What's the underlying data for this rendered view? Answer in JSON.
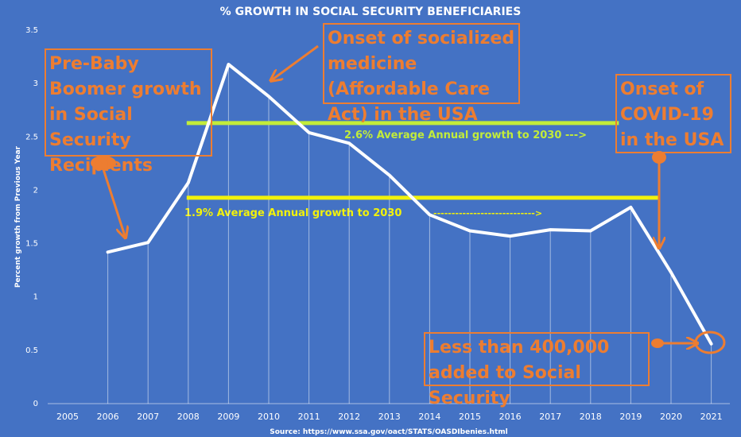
{
  "chart_data": {
    "type": "line",
    "title": "% GROWTH IN SOCIAL SECURITY BENEFICIARIES",
    "ylabel": "Percent growth from Previous Year",
    "xlabel": "",
    "source": "Source: https://www.ssa.gov/oact/STATS/OASDIbenies.html",
    "categories": [
      "2005",
      "2006",
      "2007",
      "2008",
      "2009",
      "2010",
      "2011",
      "2012",
      "2013",
      "2014",
      "2015",
      "2016",
      "2017",
      "2018",
      "2019",
      "2020",
      "2021"
    ],
    "ylim": [
      0,
      3.5
    ],
    "yticks": [
      "0",
      "0.5",
      "1",
      "1.5",
      "2",
      "2.5",
      "3",
      "3.5"
    ],
    "series": [
      {
        "name": "Percent growth",
        "values": [
          null,
          1.42,
          1.51,
          2.07,
          3.18,
          2.88,
          2.54,
          2.44,
          2.14,
          1.77,
          1.62,
          1.57,
          1.63,
          1.62,
          1.84,
          1.23,
          0.56
        ]
      }
    ],
    "reference_lines": [
      {
        "value": 2.63,
        "start": "2008",
        "end": "2019",
        "color": "#c2ec3a",
        "label": "2.6% Average Annual growth to 2030 --->",
        "label_color": "#c2ec3a"
      },
      {
        "value": 1.93,
        "start": "2008",
        "end": "2020",
        "color": "#f2f20a",
        "label": "1.9% Average Annual growth to 2030",
        "label_color": "#f2f20a",
        "dashes": "---------------------------->"
      }
    ],
    "annotations": [
      {
        "text": "Pre-Baby Boomer growth in Social Security Recipients"
      },
      {
        "text": "Onset of socialized medicine (Affordable Care Act) in the USA"
      },
      {
        "text": "Onset of COVID-19 in the USA"
      },
      {
        "text": "Less than 400,000 added to Social Security"
      }
    ],
    "colors": {
      "background": "#4472c4",
      "line": "#ffffff",
      "annotation": "#ed7d31"
    }
  }
}
